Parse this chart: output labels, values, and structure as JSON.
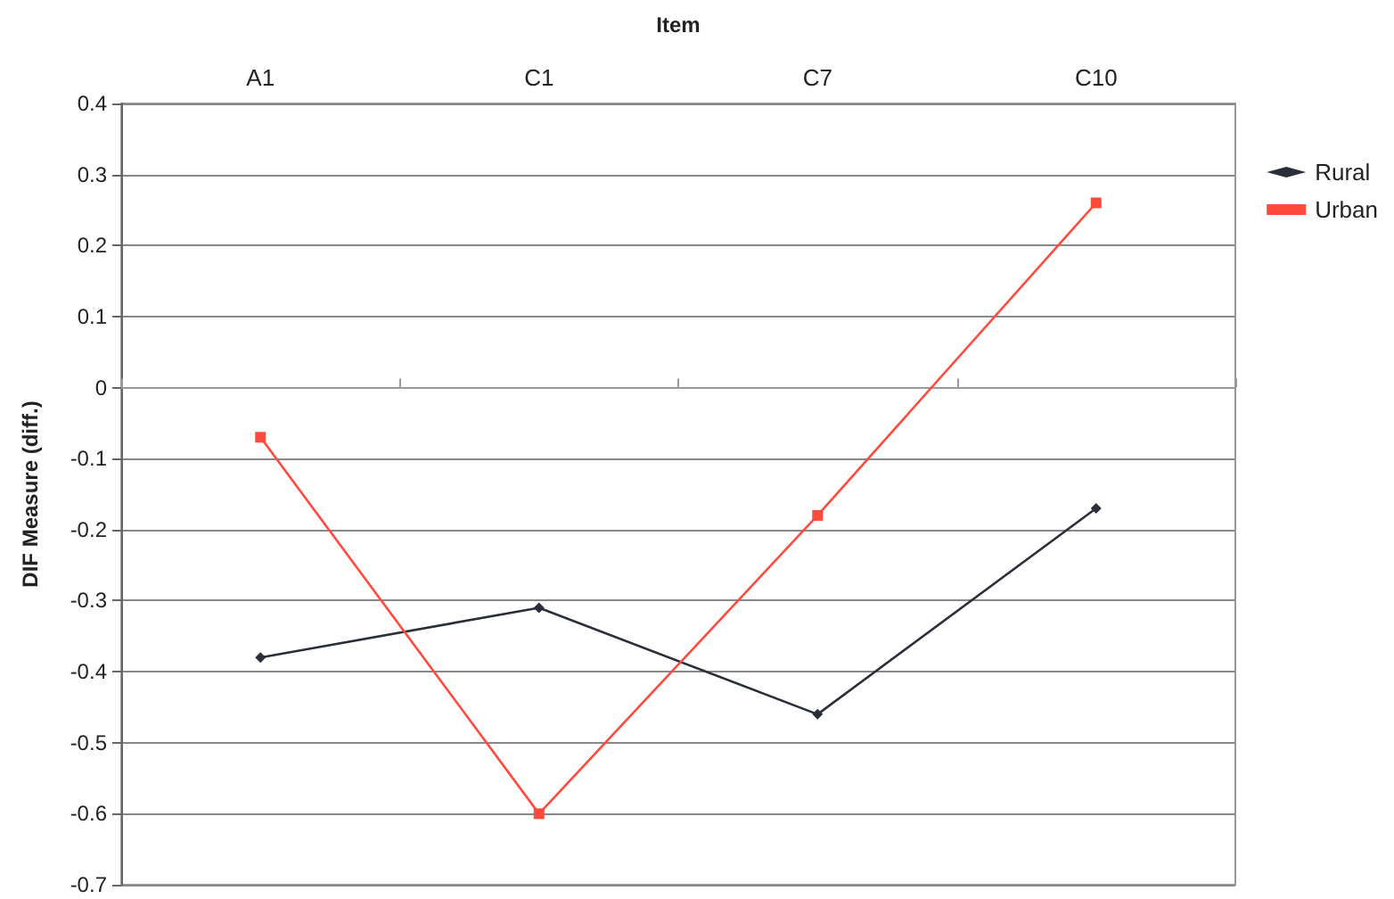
{
  "chart_data": {
    "type": "line",
    "xlabel": "Item",
    "ylabel": "DIF Measure (diff.)",
    "categories": [
      "A1",
      "C1",
      "C7",
      "C10"
    ],
    "series": [
      {
        "name": "Rural",
        "color": "#2b2f3a",
        "marker": "diamond",
        "values": [
          -0.38,
          -0.31,
          -0.46,
          -0.17
        ]
      },
      {
        "name": "Urban",
        "color": "#ff4a3d",
        "marker": "square",
        "values": [
          -0.07,
          -0.6,
          -0.18,
          0.26
        ]
      }
    ],
    "ylim": [
      -0.7,
      0.4
    ],
    "yticks": [
      -0.7,
      -0.6,
      -0.5,
      -0.4,
      -0.3,
      -0.2,
      -0.1,
      0,
      0.1,
      0.2,
      0.3,
      0.4
    ],
    "grid": "y",
    "legend": "right",
    "line_style": "solid"
  }
}
